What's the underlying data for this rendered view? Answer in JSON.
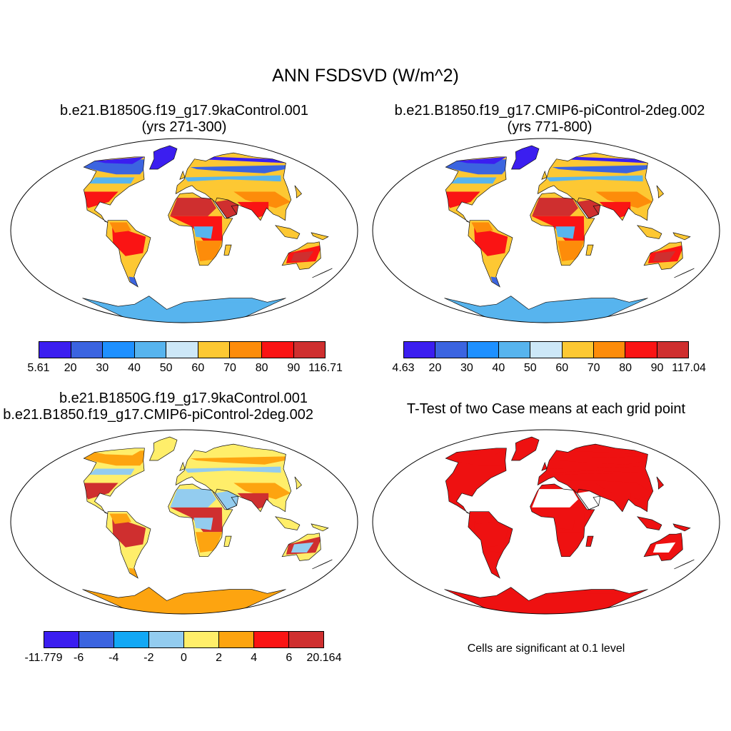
{
  "title": "ANN FSDSVD (W/m^2)",
  "colors": {
    "background": "#ffffff",
    "frame": "#000000",
    "significant": "#ee1111",
    "coast": "#111111"
  },
  "panels": [
    {
      "id": "case1",
      "title_lines": [
        "b.e21.B1850G.f19_g17.9kaControl.001",
        "(yrs 271-300)"
      ],
      "colorbar": {
        "colors": [
          "#3b1ef0",
          "#3b64e0",
          "#1e90ff",
          "#57b4ee",
          "#cde8f8",
          "#fdc833",
          "#fd8c0a",
          "#fa1414",
          "#cf2f2f"
        ],
        "labels": [
          "5.61",
          "20",
          "30",
          "40",
          "50",
          "60",
          "70",
          "80",
          "90",
          "116.71"
        ]
      },
      "field_colors": {
        "arctic": "#3b1ef0",
        "boreal": "#3b64e0",
        "cool": "#57b4ee",
        "temperate": "#fdc833",
        "warm": "#fd8c0a",
        "hot": "#fa1414",
        "desert": "#cf2f2f",
        "antarctic": "#57b4ee"
      }
    },
    {
      "id": "case2",
      "title_lines": [
        "b.e21.B1850.f19_g17.CMIP6-piControl-2deg.002",
        "(yrs 771-800)"
      ],
      "colorbar": {
        "colors": [
          "#3b1ef0",
          "#3b64e0",
          "#1e90ff",
          "#57b4ee",
          "#cde8f8",
          "#fdc833",
          "#fd8c0a",
          "#fa1414",
          "#cf2f2f"
        ],
        "labels": [
          "4.63",
          "20",
          "30",
          "40",
          "50",
          "60",
          "70",
          "80",
          "90",
          "117.04"
        ]
      },
      "field_colors": {
        "arctic": "#3b1ef0",
        "boreal": "#3b64e0",
        "cool": "#57b4ee",
        "temperate": "#fdc833",
        "warm": "#fd8c0a",
        "hot": "#fa1414",
        "desert": "#cf2f2f",
        "antarctic": "#57b4ee"
      }
    },
    {
      "id": "diff",
      "title_lines": [
        "b.e21.B1850G.f19_g17.9kaControl.001",
        "- b.e21.B1850.f19_g17.CMIP6-piControl-2deg.002"
      ],
      "colorbar": {
        "colors": [
          "#3b1ef0",
          "#3b64e0",
          "#12a8f5",
          "#93ccef",
          "#ffee6a",
          "#fda410",
          "#fa1414",
          "#cf2f2f"
        ],
        "labels": [
          "-11.779",
          "-6",
          "-4",
          "-2",
          "0",
          "2",
          "4",
          "6",
          "20.164"
        ]
      },
      "field_colors": {
        "arctic": "#ffee6a",
        "boreal": "#fda410",
        "cool": "#93ccef",
        "temperate": "#ffee6a",
        "warm": "#fda410",
        "hot": "#cf2f2f",
        "desert": "#93ccef",
        "antarctic": "#fda410"
      }
    },
    {
      "id": "ttest",
      "title_lines": [
        "T-Test of two Case means at each grid point"
      ],
      "note": "Cells are significant at 0.1 level",
      "field_colors": {
        "arctic": "#ee1111",
        "boreal": "#ee1111",
        "cool": "#ee1111",
        "temperate": "#ee1111",
        "warm": "#ee1111",
        "hot": "#ee1111",
        "desert": "#ffffff",
        "antarctic": "#ee1111"
      }
    }
  ]
}
